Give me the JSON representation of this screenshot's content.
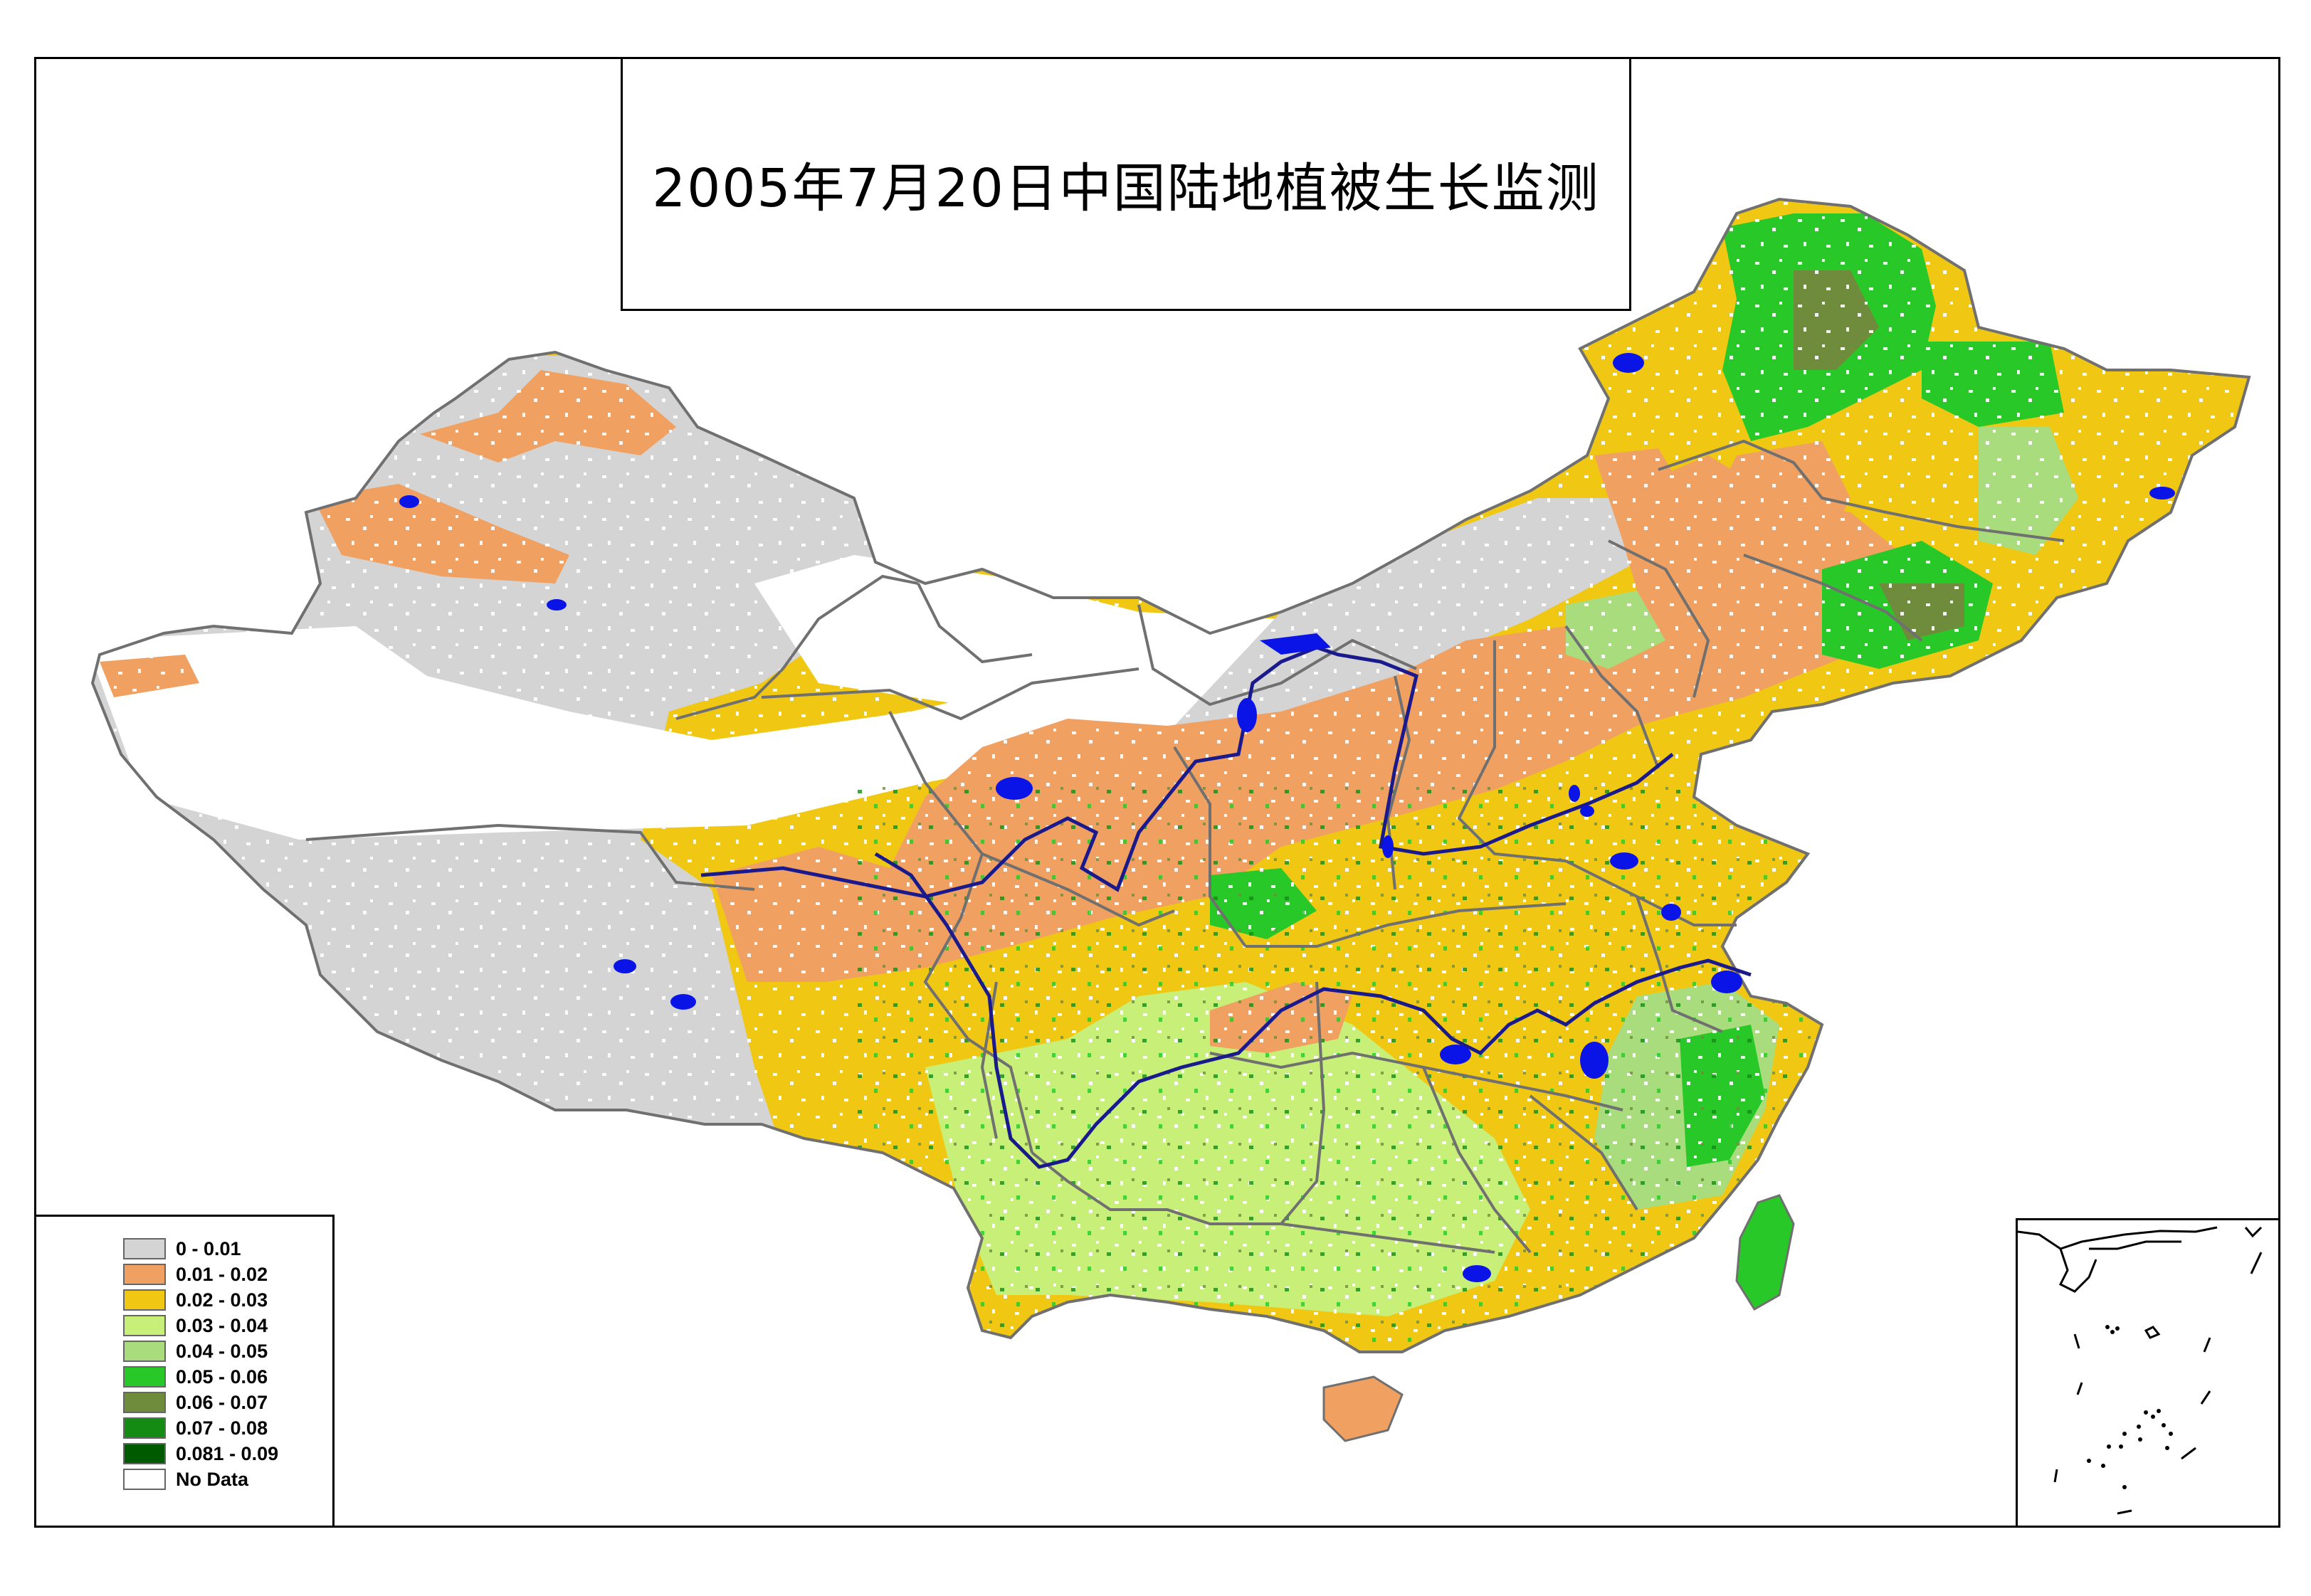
{
  "title": "2005年7月20日中国陆地植被生长监测",
  "legend": {
    "items": [
      {
        "label": "0 - 0.01",
        "color": "#d4d4d4"
      },
      {
        "label": "0.01 - 0.02",
        "color": "#f0a060"
      },
      {
        "label": "0.02 - 0.03",
        "color": "#f0c814"
      },
      {
        "label": "0.03 - 0.04",
        "color": "#c8f078"
      },
      {
        "label": "0.04 - 0.05",
        "color": "#a8dc7c"
      },
      {
        "label": "0.05 - 0.06",
        "color": "#28c828"
      },
      {
        "label": "0.06 - 0.07",
        "color": "#6e8c3c"
      },
      {
        "label": "0.07 - 0.08",
        "color": "#148c14"
      },
      {
        "label": "0.081 - 0.09",
        "color": "#005a00"
      },
      {
        "label": "No Data",
        "color": "#ffffff"
      }
    ]
  },
  "colors": {
    "water": "#0a14e6",
    "river": "#1a1a8c",
    "boundary": "#707070",
    "frame": "#000000"
  }
}
